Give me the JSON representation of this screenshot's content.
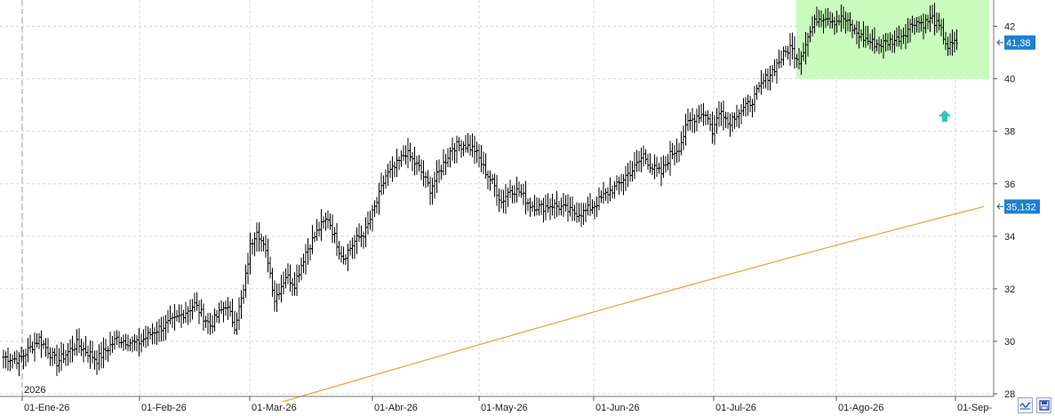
{
  "chart_data": {
    "type": "ohlc",
    "x_axis": {
      "labels": [
        "01-Ene-26",
        "01-Feb-26",
        "01-Mar-26",
        "01-Abr-26",
        "01-May-26",
        "01-Jun-26",
        "01-Jul-26",
        "01-Ago-26",
        "01-Sep-"
      ],
      "year_marker": "2026"
    },
    "y_axis": {
      "ticks": [
        28,
        30,
        32,
        34,
        36,
        38,
        40,
        42
      ],
      "range": [
        27.9,
        43.0
      ],
      "position": "right"
    },
    "grid": true,
    "price_series_color": "#000000",
    "moving_average": {
      "color": "#f0a030",
      "start": 27.7,
      "end": 35.132
    },
    "price_anchors": [
      [
        0,
        29.4
      ],
      [
        7,
        29.3
      ],
      [
        16,
        30.1
      ],
      [
        24,
        29.2
      ],
      [
        33,
        29.9
      ],
      [
        42,
        29.3
      ],
      [
        51,
        30.1
      ],
      [
        60,
        29.9
      ],
      [
        68,
        30.4
      ],
      [
        77,
        30.8
      ],
      [
        86,
        31.4
      ],
      [
        93,
        30.6
      ],
      [
        100,
        31.4
      ],
      [
        104,
        30.6
      ],
      [
        108,
        31.9
      ],
      [
        111,
        33.6
      ],
      [
        114,
        34.3
      ],
      [
        119,
        33.1
      ],
      [
        122,
        31.6
      ],
      [
        127,
        32.5
      ],
      [
        131,
        32.2
      ],
      [
        136,
        33.4
      ],
      [
        142,
        34.3
      ],
      [
        146,
        34.7
      ],
      [
        151,
        33.5
      ],
      [
        153,
        33.2
      ],
      [
        158,
        33.8
      ],
      [
        163,
        34.2
      ],
      [
        168,
        35.3
      ],
      [
        172,
        36.3
      ],
      [
        176,
        36.6
      ],
      [
        181,
        37.2
      ],
      [
        184,
        36.9
      ],
      [
        187,
        36.6
      ],
      [
        192,
        35.8
      ],
      [
        197,
        36.6
      ],
      [
        202,
        37.4
      ],
      [
        207,
        37.5
      ],
      [
        212,
        37.3
      ],
      [
        216,
        36.6
      ],
      [
        221,
        35.9
      ],
      [
        224,
        35.3
      ],
      [
        228,
        35.8
      ],
      [
        232,
        35.7
      ],
      [
        237,
        35.2
      ],
      [
        242,
        35.1
      ],
      [
        247,
        35.2
      ],
      [
        251,
        35.1
      ],
      [
        256,
        34.9
      ],
      [
        261,
        34.9
      ],
      [
        266,
        35.2
      ],
      [
        271,
        35.6
      ],
      [
        276,
        35.9
      ],
      [
        280,
        36.3
      ],
      [
        284,
        36.6
      ],
      [
        288,
        37.1
      ],
      [
        292,
        36.6
      ],
      [
        296,
        36.4
      ],
      [
        300,
        37.1
      ],
      [
        304,
        37.4
      ],
      [
        308,
        38.3
      ],
      [
        312,
        38.6
      ],
      [
        316,
        38.7
      ],
      [
        319,
        38.0
      ],
      [
        323,
        38.9
      ],
      [
        326,
        38.3
      ],
      [
        330,
        38.7
      ],
      [
        334,
        38.9
      ],
      [
        338,
        39.3
      ],
      [
        342,
        39.9
      ],
      [
        346,
        40.3
      ],
      [
        350,
        40.8
      ],
      [
        354,
        41.2
      ],
      [
        358,
        40.7
      ],
      [
        362,
        41.6
      ],
      [
        366,
        42.3
      ],
      [
        370,
        42.4
      ],
      [
        374,
        42.2
      ],
      [
        378,
        42.3
      ],
      [
        382,
        41.9
      ],
      [
        386,
        41.6
      ],
      [
        390,
        41.4
      ],
      [
        394,
        41.3
      ],
      [
        398,
        41.4
      ],
      [
        402,
        41.5
      ],
      [
        406,
        41.8
      ],
      [
        410,
        42.2
      ],
      [
        414,
        42.1
      ],
      [
        418,
        42.3
      ],
      [
        422,
        41.8
      ],
      [
        425,
        41.2
      ],
      [
        429,
        41.38
      ]
    ],
    "highlight_box": {
      "y_range": [
        40.0,
        43.0
      ],
      "color": "#c8fbbd"
    },
    "last_price_label": "41,38",
    "ma_label": "35,132",
    "signal_arrow": {
      "direction": "up",
      "color": "#2cc8b8",
      "price": 38.6
    }
  },
  "buttons": {
    "zoom_icon": "wave-icon",
    "save_icon": "save-icon"
  }
}
